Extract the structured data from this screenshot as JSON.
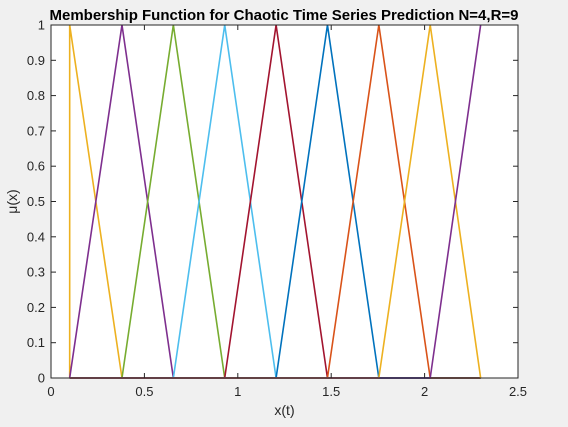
{
  "chart_data": {
    "type": "line",
    "title": "Membership Function for Chaotic Time Series Prediction N=4,R=9",
    "xlabel": "x(t)",
    "ylabel": "μ(x)",
    "xlim": [
      0,
      2.5
    ],
    "ylim": [
      0,
      1
    ],
    "xticks": [
      "0",
      "0.5",
      "1",
      "1.5",
      "2",
      "2.5"
    ],
    "yticks": [
      "0",
      "0.1",
      "0.2",
      "0.3",
      "0.4",
      "0.5",
      "0.6",
      "0.7",
      "0.8",
      "0.9",
      "1"
    ],
    "grid": false,
    "legend": "none",
    "series": [
      {
        "color": "#EDB120",
        "x": [
          0.1,
          0.1,
          0.38,
          2.3
        ],
        "y": [
          0,
          1,
          0,
          0
        ]
      },
      {
        "color": "#7E2F8E",
        "x": [
          0.1,
          0.38,
          0.655,
          2.3
        ],
        "y": [
          0,
          1,
          0,
          0
        ]
      },
      {
        "color": "#77AC30",
        "x": [
          0.1,
          0.38,
          0.655,
          0.93,
          2.3
        ],
        "y": [
          0,
          0,
          1,
          0,
          0
        ]
      },
      {
        "color": "#4DBEEE",
        "x": [
          0.1,
          0.655,
          0.93,
          1.205,
          2.3
        ],
        "y": [
          0,
          0,
          1,
          0,
          0
        ]
      },
      {
        "color": "#A2142F",
        "x": [
          0.1,
          0.93,
          1.205,
          1.48,
          2.3
        ],
        "y": [
          0,
          0,
          1,
          0,
          0
        ]
      },
      {
        "color": "#0072BD",
        "x": [
          0.1,
          1.205,
          1.48,
          1.755,
          2.3
        ],
        "y": [
          0,
          0,
          1,
          0,
          0
        ]
      },
      {
        "color": "#D95319",
        "x": [
          0.1,
          1.48,
          1.755,
          2.03,
          2.3
        ],
        "y": [
          0,
          0,
          1,
          0,
          0
        ]
      },
      {
        "color": "#EDB120",
        "x": [
          0.1,
          1.755,
          2.03,
          2.3,
          2.3
        ],
        "y": [
          0,
          0,
          1,
          0,
          0
        ]
      },
      {
        "color": "#7E2F8E",
        "x": [
          0.1,
          2.03,
          2.3
        ],
        "y": [
          0,
          0,
          1
        ]
      }
    ]
  }
}
